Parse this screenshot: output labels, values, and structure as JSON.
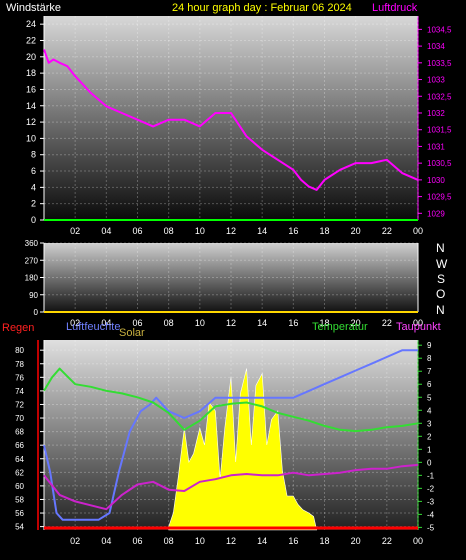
{
  "header": {
    "left_label": "Windstärke",
    "title": "24 hour graph day : Februar 06 2024",
    "right_label": "Luftdruck"
  },
  "compass": [
    "N",
    "W",
    "S",
    "O",
    "N"
  ],
  "labels": {
    "regen": "Regen",
    "luftfeuchte": "Luftfeuchte",
    "solar": "Solar",
    "temperatur": "Temperatur",
    "taupunkt": "Taupunkt"
  },
  "colors": {
    "background": "#000000",
    "pressure": "#ff00ff",
    "wind": "#00ff00",
    "winddir": "#ffd700",
    "humidity": "#6677ff",
    "solar": "#ffff00",
    "temperature": "#33dd33",
    "dewpoint": "#cc22cc",
    "rain": "#ff0000",
    "header_title": "#ffff00"
  },
  "chart_data": [
    {
      "type": "line",
      "x_ticks": [
        "02",
        "04",
        "06",
        "08",
        "10",
        "12",
        "14",
        "16",
        "18",
        "20",
        "22",
        "00"
      ],
      "left_axis": {
        "ticks": [
          0,
          2,
          4,
          6,
          8,
          10,
          12,
          14,
          16,
          18,
          20,
          22,
          24
        ],
        "ylim": [
          0,
          25
        ]
      },
      "right_axis": {
        "ticks": [
          "1034,5",
          "1034",
          "1033,5",
          "1033",
          "1032,5",
          "1032",
          "1031,5",
          "1031",
          "1030,5",
          "1030",
          "1029,5",
          "1029"
        ],
        "ylim": [
          1028.8,
          1034.9
        ]
      },
      "series": [
        {
          "name": "Luftdruck",
          "axis": "right",
          "x": [
            0,
            0.3,
            0.6,
            1,
            1.5,
            2,
            3,
            4,
            5,
            6,
            7,
            8,
            9,
            10,
            11,
            12,
            13,
            14,
            15,
            16,
            16.5,
            17,
            17.5,
            18,
            19,
            20,
            21,
            22,
            23,
            24
          ],
          "values": [
            1033.9,
            1033.5,
            1033.6,
            1033.5,
            1033.4,
            1033.1,
            1032.6,
            1032.2,
            1032.0,
            1031.8,
            1031.6,
            1031.8,
            1031.8,
            1031.6,
            1032.0,
            1032.0,
            1031.3,
            1030.9,
            1030.6,
            1030.3,
            1030.0,
            1029.8,
            1029.7,
            1030.0,
            1030.3,
            1030.5,
            1030.5,
            1030.6,
            1030.2,
            1030.0
          ]
        },
        {
          "name": "Windstärke",
          "axis": "left",
          "x": [
            0,
            24
          ],
          "values": [
            0,
            0
          ]
        }
      ]
    },
    {
      "type": "line",
      "x_ticks": [
        "02",
        "04",
        "06",
        "08",
        "10",
        "12",
        "14",
        "16",
        "18",
        "20",
        "22",
        "00"
      ],
      "left_axis": {
        "ticks": [
          0,
          90,
          180,
          270,
          360
        ],
        "ylim": [
          0,
          360
        ]
      },
      "series": [
        {
          "name": "Windrichtung",
          "x": [
            0,
            24
          ],
          "values": [
            0,
            0
          ]
        }
      ]
    },
    {
      "type": "line",
      "x_ticks": [
        "02",
        "04",
        "06",
        "08",
        "10",
        "12",
        "14",
        "16",
        "18",
        "20",
        "22",
        "00"
      ],
      "humidity_axis": {
        "ticks": [
          54,
          56,
          58,
          60,
          62,
          64,
          66,
          68,
          70,
          72,
          74,
          76,
          78,
          80
        ],
        "ylim": [
          53.5,
          81.5
        ]
      },
      "temperature_axis": {
        "ticks": [
          -5,
          -4,
          -3,
          -2,
          -1,
          0,
          1,
          2,
          3,
          4,
          5,
          6,
          7,
          8,
          9
        ],
        "ylim": [
          -5.2,
          9.4
        ]
      },
      "series": [
        {
          "name": "Luftfeuchte",
          "axis": "humidity",
          "x": [
            0,
            0.4,
            0.8,
            1.2,
            1.6,
            2.5,
            3.5,
            4.2,
            4.8,
            5.5,
            6.2,
            6.8,
            7.2,
            8,
            9,
            10,
            11,
            12,
            13,
            14,
            15,
            16,
            17,
            18,
            19,
            20,
            21,
            22,
            23,
            24
          ],
          "values": [
            66,
            62,
            56,
            55,
            55,
            55,
            55,
            56,
            62,
            68,
            71,
            72,
            73,
            71,
            70,
            71,
            73,
            73,
            73,
            73,
            73,
            73,
            74,
            75,
            76,
            77,
            78,
            79,
            80,
            80
          ]
        },
        {
          "name": "Temperatur",
          "axis": "temperature",
          "x": [
            0,
            0.5,
            1,
            1.5,
            2,
            3,
            4,
            5,
            6,
            7,
            8,
            9,
            10,
            11,
            12,
            13,
            14,
            15,
            16,
            17,
            18,
            19,
            20,
            21,
            22,
            23,
            24
          ],
          "values": [
            5.5,
            6.5,
            7.2,
            6.6,
            6.0,
            5.8,
            5.5,
            5.3,
            5.0,
            4.6,
            3.8,
            2.5,
            3.2,
            4.3,
            4.5,
            4.6,
            4.3,
            3.8,
            3.5,
            3.2,
            2.8,
            2.5,
            2.4,
            2.5,
            2.7,
            2.8,
            3.0
          ]
        },
        {
          "name": "Taupunkt",
          "axis": "temperature",
          "x": [
            0,
            1,
            2,
            3,
            4,
            5,
            6,
            7,
            8,
            9,
            10,
            11,
            12,
            13,
            14,
            15,
            16,
            17,
            18,
            19,
            20,
            21,
            22,
            23,
            24
          ],
          "values": [
            -1.0,
            -2.5,
            -3.0,
            -3.3,
            -3.6,
            -2.5,
            -1.7,
            -1.5,
            -2.1,
            -2.2,
            -1.5,
            -1.3,
            -1.0,
            -0.9,
            -1.0,
            -1.0,
            -0.8,
            -1.0,
            -0.9,
            -0.8,
            -0.6,
            -0.5,
            -0.5,
            -0.3,
            -0.2
          ]
        },
        {
          "name": "Solar",
          "axis": "none",
          "x": [
            8.0,
            8.3,
            8.6,
            9.0,
            9.3,
            9.6,
            10.0,
            10.3,
            10.6,
            11.0,
            11.3,
            11.6,
            12.0,
            12.3,
            12.6,
            13.0,
            13.3,
            13.6,
            14.0,
            14.3,
            14.6,
            15.0,
            15.3,
            15.6,
            16.0,
            16.3,
            16.6,
            17.0,
            17.3,
            17.5
          ],
          "values": [
            0.02,
            0.1,
            0.3,
            0.6,
            0.4,
            0.45,
            0.6,
            0.5,
            0.75,
            0.7,
            0.3,
            0.6,
            0.9,
            0.4,
            0.8,
            0.95,
            0.5,
            0.85,
            0.92,
            0.5,
            0.65,
            0.7,
            0.35,
            0.2,
            0.2,
            0.15,
            0.12,
            0.1,
            0.08,
            0.0
          ]
        },
        {
          "name": "Regen",
          "axis": "none",
          "x": [
            0,
            24
          ],
          "values": [
            0,
            0
          ]
        }
      ]
    }
  ]
}
